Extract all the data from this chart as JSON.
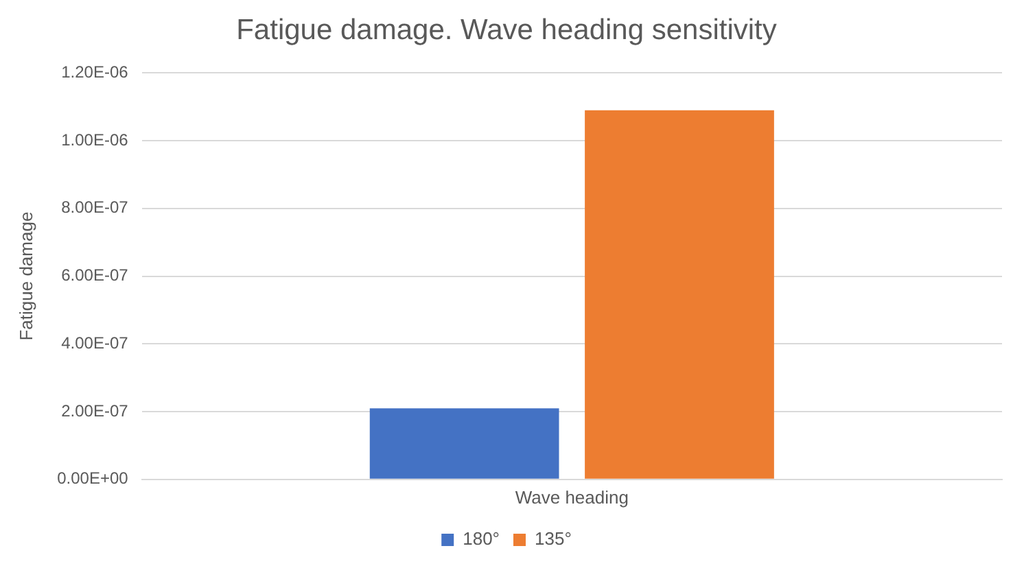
{
  "chart_data": {
    "type": "bar",
    "title": "Fatigue damage. Wave heading sensitivity",
    "ylabel": "Fatigue damage",
    "categories": [
      "Wave heading"
    ],
    "series": [
      {
        "name": "180°",
        "color": "#4472c4",
        "values": [
          2.1e-07
        ]
      },
      {
        "name": "135°",
        "color": "#ed7d31",
        "values": [
          1.09e-06
        ]
      }
    ],
    "ylim": [
      0,
      1.2e-06
    ],
    "yticks": [
      {
        "value": 0,
        "label": "0.00E+00"
      },
      {
        "value": 2e-07,
        "label": "2.00E-07"
      },
      {
        "value": 4e-07,
        "label": "4.00E-07"
      },
      {
        "value": 6e-07,
        "label": "6.00E-07"
      },
      {
        "value": 8e-07,
        "label": "8.00E-07"
      },
      {
        "value": 1e-06,
        "label": "1.00E-06"
      },
      {
        "value": 1.2e-06,
        "label": "1.20E-06"
      }
    ],
    "grid": "y",
    "legend": "bottom"
  }
}
